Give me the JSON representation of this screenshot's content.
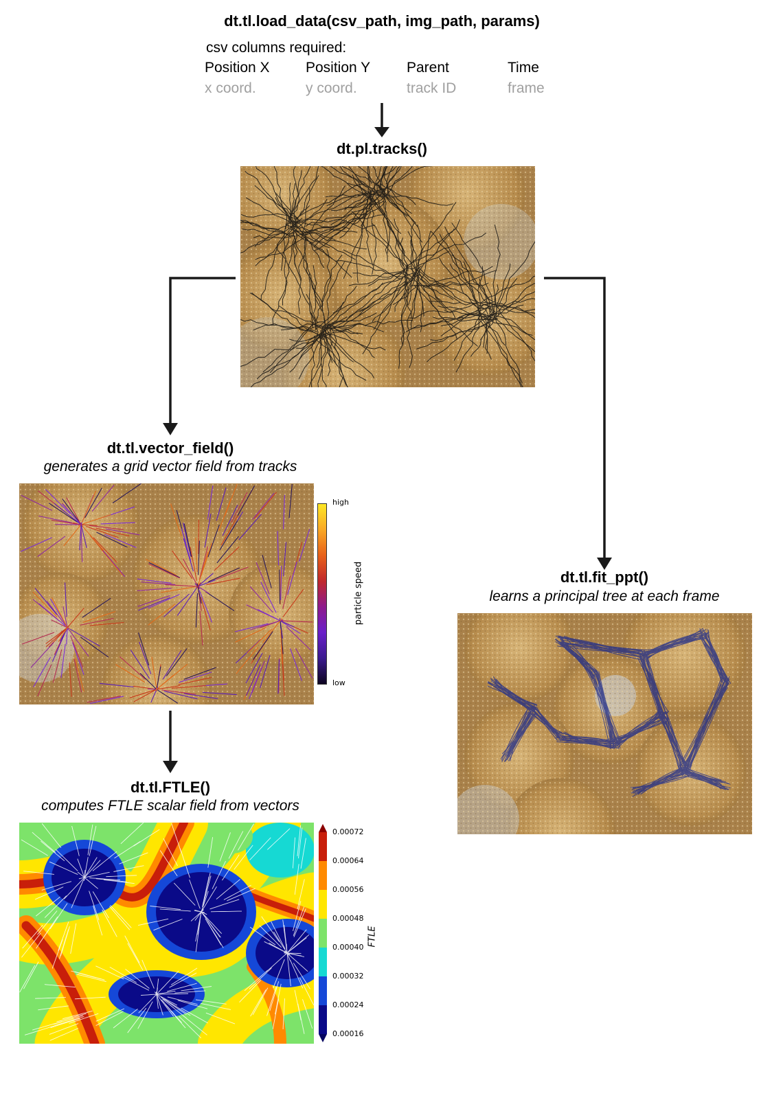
{
  "load_data": {
    "title": "dt.tl.load_data(csv_path, img_path, params)",
    "csv_label": "csv columns required:",
    "columns": [
      {
        "name": "Position X",
        "desc": "x coord."
      },
      {
        "name": "Position Y",
        "desc": "y coord."
      },
      {
        "name": "Parent",
        "desc": "track ID"
      },
      {
        "name": "Time",
        "desc": "frame"
      }
    ]
  },
  "tracks": {
    "title": "dt.pl.tracks()"
  },
  "vector_field": {
    "title": "dt.tl.vector_field()",
    "subtitle": "generates a grid vector field from tracks",
    "colorbar": {
      "label": "particle speed",
      "high": "high",
      "low": "low"
    }
  },
  "ftle": {
    "title": "dt.tl.FTLE()",
    "subtitle": "computes FTLE scalar field from vectors",
    "colorbar": {
      "label": "FTLE",
      "ticks": [
        "0.00072",
        "0.00064",
        "0.00056",
        "0.00048",
        "0.00040",
        "0.00032",
        "0.00024",
        "0.00016"
      ]
    }
  },
  "fit_ppt": {
    "title": "dt.tl.fit_ppt()",
    "subtitle": "learns a principal tree at each frame"
  },
  "colors": {
    "arrow": "#1a1a1a",
    "coral_base": "#b08a4e",
    "tracks_line": "#111111",
    "tree_line": "#1c2a8a"
  }
}
